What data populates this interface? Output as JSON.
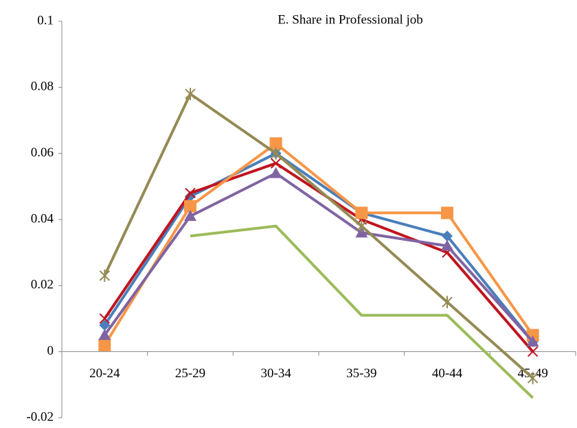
{
  "chart_data": {
    "type": "line",
    "title": "E.  Share in Professional job",
    "categories": [
      "20-24",
      "25-29",
      "30-34",
      "35-39",
      "40-44",
      "45-49"
    ],
    "ylim": [
      -0.02,
      0.1
    ],
    "yticks": [
      -0.02,
      0,
      0.02,
      0.04,
      0.06,
      0.08,
      0.1
    ],
    "grid": false,
    "series": [
      {
        "color": "#4a7ebb",
        "marker": "diamond",
        "values": [
          0.008,
          0.047,
          0.06,
          0.042,
          0.035,
          0.003
        ]
      },
      {
        "color": "#c0141e",
        "marker": "x",
        "values": [
          0.01,
          0.048,
          0.057,
          0.04,
          0.03,
          0.0
        ]
      },
      {
        "color": "#f79646",
        "marker": "square",
        "values": [
          0.002,
          0.044,
          0.063,
          0.042,
          0.042,
          0.005
        ]
      },
      {
        "color": "#8064a2",
        "marker": "triangle",
        "values": [
          0.005,
          0.041,
          0.054,
          0.036,
          0.032,
          0.003
        ]
      },
      {
        "color": "#9bbb59",
        "marker": "none",
        "values": [
          null,
          0.035,
          0.038,
          0.011,
          0.011,
          -0.014
        ]
      },
      {
        "color": "#948a54",
        "marker": "star",
        "values": [
          0.023,
          0.078,
          0.06,
          0.038,
          0.015,
          -0.008
        ]
      }
    ]
  }
}
